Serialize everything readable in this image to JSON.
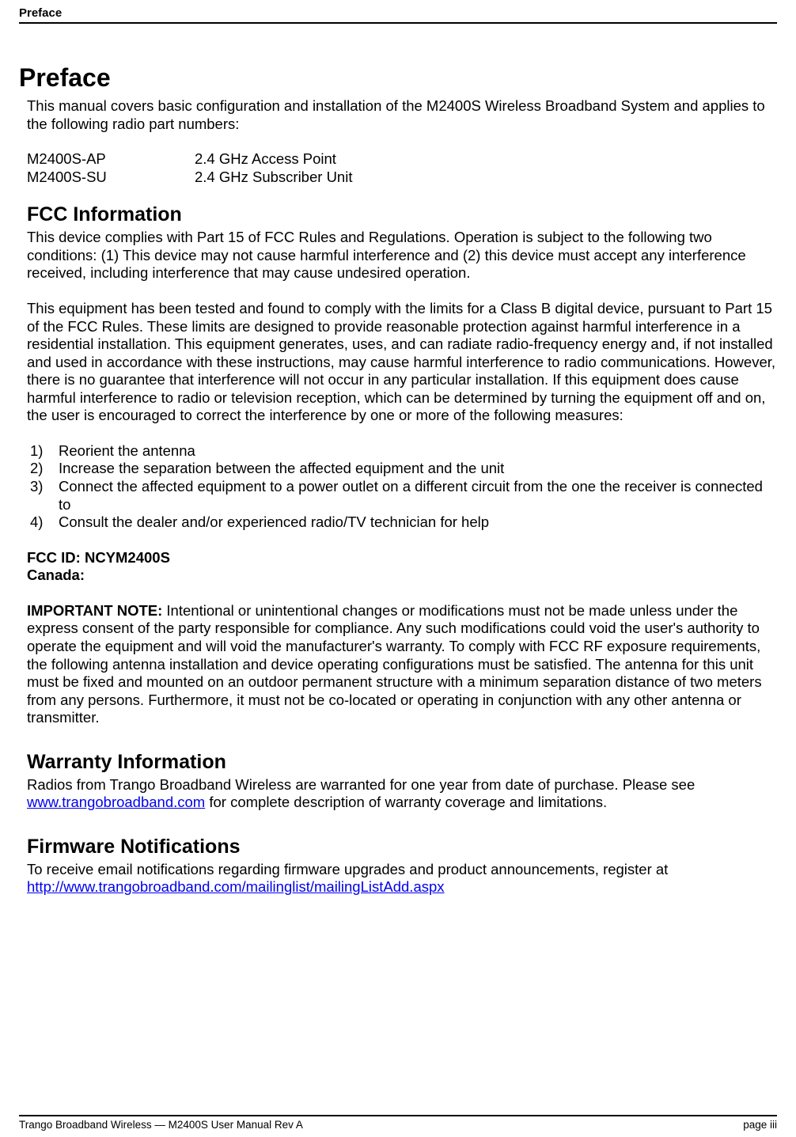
{
  "header": {
    "running_title": "Preface"
  },
  "title": "Preface",
  "intro": {
    "p1": "This manual covers basic configuration and installation of the M2400S Wireless Broadband System and applies to the following radio part numbers:"
  },
  "specs": [
    {
      "model": "M2400S-AP",
      "desc": "2.4 GHz Access Point"
    },
    {
      "model": "M2400S-SU",
      "desc": "2.4 GHz Subscriber Unit"
    }
  ],
  "fcc": {
    "heading": "FCC Information",
    "p1": "This device complies with Part 15 of FCC Rules and Regulations. Operation is subject to the following two conditions: (1) This device may not cause harmful interference and (2) this device must accept any interference received, including interference that may cause undesired operation.",
    "p2": "This equipment has been tested and found to comply with the limits for a Class B digital device, pursuant to Part 15 of the FCC Rules. These limits are designed to provide reasonable protection against harmful interference in a residential installation. This equipment generates, uses, and can radiate radio-frequency energy and, if not installed and used in accordance with these instructions, may cause harmful interference to radio communications. However, there is no guarantee that interference will not occur in any particular installation. If this equipment does cause harmful interference to radio or television reception, which can be determined by turning the equipment off and on, the user is encouraged to correct the interference by one or more of the following measures:",
    "measures": [
      "Reorient the antenna",
      "Increase the separation between the affected  equipment and the unit",
      "Connect the affected equipment to a power outlet on a different circuit from the one the receiver is connected to",
      "Consult the dealer and/or experienced radio/TV technician for help"
    ],
    "fcc_id": "FCC ID: NCYM2400S",
    "canada": "Canada:",
    "important_lead": "IMPORTANT NOTE:",
    "important_body": "  Intentional or unintentional changes or modifications must not be made unless under the express consent of the party responsible for compliance. Any such modifications could void the user's authority to operate the equipment and will void the manufacturer's warranty. To comply with FCC RF exposure requirements, the following antenna installation and device operating configurations must be satisfied. The antenna for this unit must be fixed and mounted on an outdoor permanent structure with a minimum separation distance of two meters from any persons. Furthermore, it must not be co-located or operating in conjunction with any other antenna or transmitter."
  },
  "warranty": {
    "heading": "Warranty Information",
    "text_before": "Radios from Trango Broadband Wireless are warranted for one year from date of purchase.  Please see ",
    "link_text": "www.trangobroadband.com",
    "link_href": "http://www.trangobroadband.com",
    "text_after": " for complete description of warranty coverage and limitations."
  },
  "firmware": {
    "heading": "Firmware Notifications",
    "text": "To receive email notifications regarding firmware upgrades and product announcements, register at ",
    "link_text": "http://www.trangobroadband.com/mailinglist/mailingListAdd.aspx",
    "link_href": "http://www.trangobroadband.com/mailinglist/mailingListAdd.aspx"
  },
  "footer": {
    "left": "Trango Broadband Wireless — M2400S User Manual  Rev A",
    "right": "page iii"
  }
}
